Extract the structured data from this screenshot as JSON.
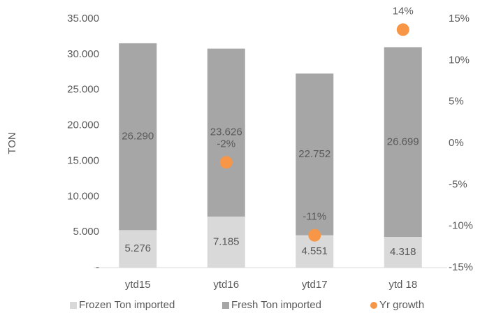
{
  "chart_data": {
    "type": "bar",
    "stacked": true,
    "y_axis_label": "TON",
    "categories": [
      "ytd15",
      "ytd16",
      "ytd17",
      "ytd 18"
    ],
    "series": [
      {
        "name": "Frozen Ton imported",
        "color": "#d9d9d9",
        "values": [
          5276,
          7185,
          4551,
          4318
        ],
        "value_labels": [
          "5.276",
          "7.185",
          "4.551",
          "4.318"
        ]
      },
      {
        "name": "Fresh Ton imported",
        "color": "#a6a6a6",
        "values": [
          26290,
          23626,
          22752,
          26699
        ],
        "value_labels": [
          "26.290",
          "23.626",
          "22.752",
          "26.699"
        ]
      },
      {
        "name": "Yr growth",
        "type": "scatter",
        "axis": "y2",
        "color": "#f79646",
        "values": [
          null,
          -2.3,
          -11.1,
          13.7
        ],
        "value_labels": [
          null,
          "-2%",
          "-11%",
          "14%"
        ]
      }
    ],
    "ylim": [
      0,
      35000
    ],
    "yticks": [
      {
        "value": 0,
        "label": "-"
      },
      {
        "value": 5000,
        "label": "5.000"
      },
      {
        "value": 10000,
        "label": "10.000"
      },
      {
        "value": 15000,
        "label": "15.000"
      },
      {
        "value": 20000,
        "label": "20.000"
      },
      {
        "value": 25000,
        "label": "25.000"
      },
      {
        "value": 30000,
        "label": "30.000"
      },
      {
        "value": 35000,
        "label": "35.000"
      }
    ],
    "y2lim": [
      -15,
      15
    ],
    "y2ticks": [
      {
        "value": -15,
        "label": "-15%"
      },
      {
        "value": -10,
        "label": "-10%"
      },
      {
        "value": -5,
        "label": "-5%"
      },
      {
        "value": 0,
        "label": "0%"
      },
      {
        "value": 5,
        "label": "5%"
      },
      {
        "value": 10,
        "label": "10%"
      },
      {
        "value": 15,
        "label": "15%"
      }
    ],
    "grid": false,
    "legend": "bottom"
  }
}
